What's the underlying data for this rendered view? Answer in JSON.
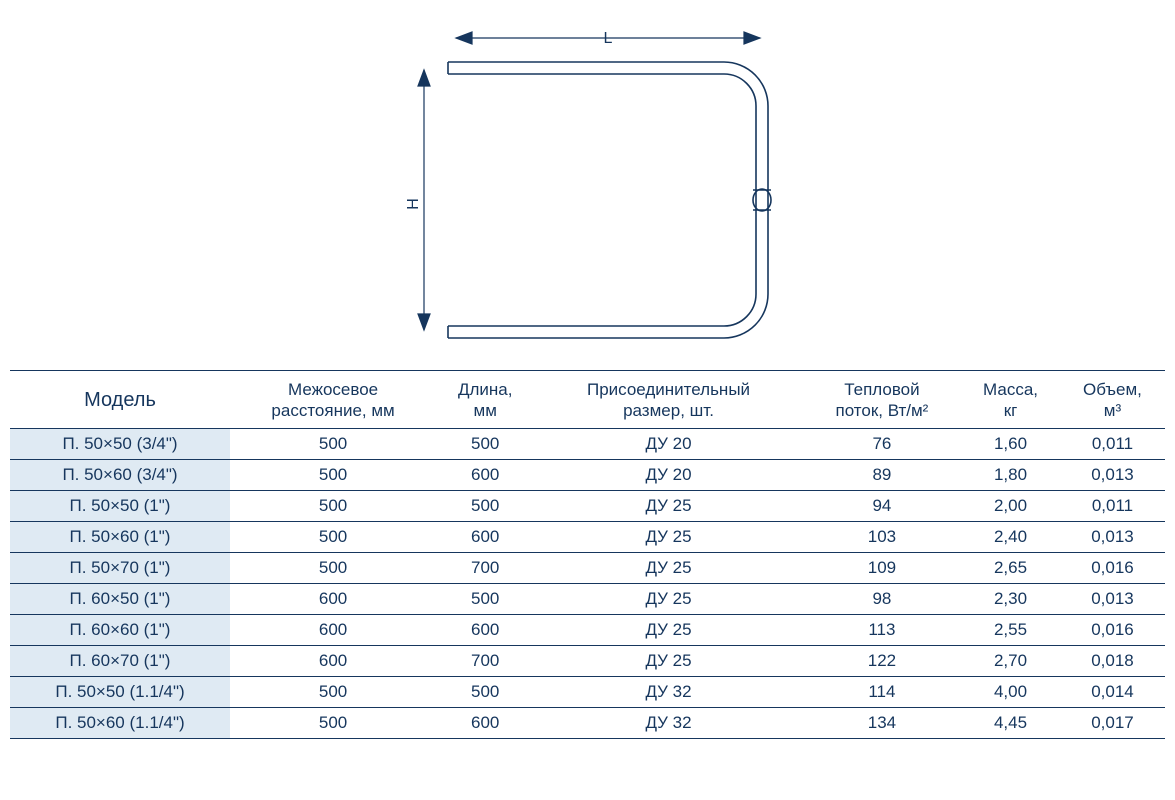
{
  "diagram": {
    "type": "technical-drawing",
    "labels": {
      "width": "L",
      "height": "H"
    },
    "colors": {
      "outline": "#16365d",
      "arrow": "#16365d",
      "label": "#16365d",
      "background": "#ffffff"
    },
    "stroke_width_outline": 1.8,
    "stroke_width_dim": 1.2,
    "font_size_label": 16
  },
  "table": {
    "type": "table",
    "text_color": "#16365d",
    "border_color": "#16365d",
    "header_border_width": 1.5,
    "row_border_width": 1.0,
    "model_cell_bg": "#dfeaf3",
    "font_size_header_model": 20,
    "font_size_header": 17,
    "font_size_body": 17,
    "columns": [
      {
        "key": "model",
        "label_l1": "Модель",
        "label_l2": ""
      },
      {
        "key": "center",
        "label_l1": "Межосевое",
        "label_l2": "расстояние, мм"
      },
      {
        "key": "length",
        "label_l1": "Длина,",
        "label_l2": "мм"
      },
      {
        "key": "conn",
        "label_l1": "Присоединительный",
        "label_l2": "размер, шт."
      },
      {
        "key": "heat",
        "label_l1": "Тепловой",
        "label_l2": "поток, Вт/м²"
      },
      {
        "key": "mass",
        "label_l1": "Масса,",
        "label_l2": "кг"
      },
      {
        "key": "vol",
        "label_l1": "Объем,",
        "label_l2": "м³"
      }
    ],
    "rows": [
      {
        "model": "П. 50×50 (3/4\")",
        "center": "500",
        "length": "500",
        "conn": "ДУ 20",
        "heat": "76",
        "mass": "1,60",
        "vol": "0,011"
      },
      {
        "model": "П. 50×60 (3/4\")",
        "center": "500",
        "length": "600",
        "conn": "ДУ 20",
        "heat": "89",
        "mass": "1,80",
        "vol": "0,013"
      },
      {
        "model": "П. 50×50 (1\")",
        "center": "500",
        "length": "500",
        "conn": "ДУ 25",
        "heat": "94",
        "mass": "2,00",
        "vol": "0,011"
      },
      {
        "model": "П. 50×60 (1\")",
        "center": "500",
        "length": "600",
        "conn": "ДУ 25",
        "heat": "103",
        "mass": "2,40",
        "vol": "0,013"
      },
      {
        "model": "П. 50×70 (1\")",
        "center": "500",
        "length": "700",
        "conn": "ДУ 25",
        "heat": "109",
        "mass": "2,65",
        "vol": "0,016"
      },
      {
        "model": "П. 60×50 (1\")",
        "center": "600",
        "length": "500",
        "conn": "ДУ 25",
        "heat": "98",
        "mass": "2,30",
        "vol": "0,013"
      },
      {
        "model": "П. 60×60 (1\")",
        "center": "600",
        "length": "600",
        "conn": "ДУ 25",
        "heat": "113",
        "mass": "2,55",
        "vol": "0,016"
      },
      {
        "model": "П. 60×70 (1\")",
        "center": "600",
        "length": "700",
        "conn": "ДУ 25",
        "heat": "122",
        "mass": "2,70",
        "vol": "0,018"
      },
      {
        "model": "П. 50×50 (1.1/4\")",
        "center": "500",
        "length": "500",
        "conn": "ДУ 32",
        "heat": "114",
        "mass": "4,00",
        "vol": "0,014"
      },
      {
        "model": "П. 50×60 (1.1/4\")",
        "center": "500",
        "length": "600",
        "conn": "ДУ 32",
        "heat": "134",
        "mass": "4,45",
        "vol": "0,017"
      }
    ]
  }
}
